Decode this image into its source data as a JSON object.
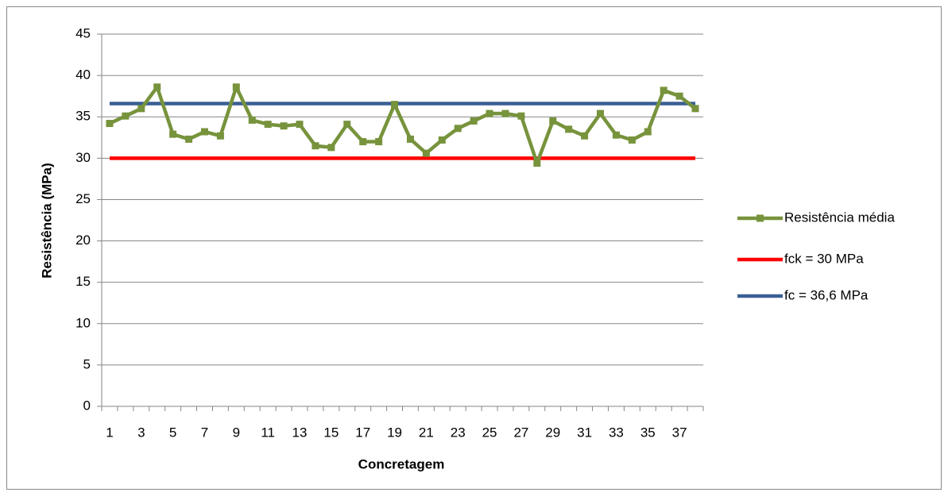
{
  "chart_data": {
    "type": "line",
    "x_label": "Concretagem",
    "y_label": "Resistência (MPa)",
    "categories": [
      "1",
      null,
      "3",
      null,
      "5",
      null,
      "7",
      null,
      "9",
      null,
      "11",
      null,
      "13",
      null,
      "15",
      null,
      "17",
      null,
      "19",
      null,
      "21",
      null,
      "23",
      null,
      "25",
      null,
      "27",
      null,
      "29",
      null,
      "31",
      null,
      "33",
      null,
      "35",
      null,
      "37",
      null
    ],
    "series": [
      {
        "name": "Resistência média",
        "color": "#77933c",
        "marker": "square",
        "values": [
          34.2,
          35.1,
          36.0,
          38.6,
          32.9,
          32.3,
          33.2,
          32.7,
          38.6,
          34.6,
          34.1,
          33.9,
          34.1,
          31.5,
          31.3,
          34.1,
          32.0,
          32.0,
          36.5,
          32.3,
          30.6,
          32.2,
          33.6,
          34.5,
          35.4,
          35.4,
          35.1,
          29.4,
          34.5,
          33.5,
          32.7,
          35.4,
          32.8,
          32.2,
          33.2,
          38.2,
          37.5,
          36.0
        ]
      },
      {
        "name": "fck = 30 MPa",
        "color": "#ff0000",
        "values": [
          30,
          30,
          30,
          30,
          30,
          30,
          30,
          30,
          30,
          30,
          30,
          30,
          30,
          30,
          30,
          30,
          30,
          30,
          30,
          30,
          30,
          30,
          30,
          30,
          30,
          30,
          30,
          30,
          30,
          30,
          30,
          30,
          30,
          30,
          30,
          30,
          30,
          30
        ]
      },
      {
        "name": "fc = 36,6 MPa",
        "color": "#3a5f94",
        "values": [
          36.6,
          36.6,
          36.6,
          36.6,
          36.6,
          36.6,
          36.6,
          36.6,
          36.6,
          36.6,
          36.6,
          36.6,
          36.6,
          36.6,
          36.6,
          36.6,
          36.6,
          36.6,
          36.6,
          36.6,
          36.6,
          36.6,
          36.6,
          36.6,
          36.6,
          36.6,
          36.6,
          36.6,
          36.6,
          36.6,
          36.6,
          36.6,
          36.6,
          36.6,
          36.6,
          36.6,
          36.6,
          36.6
        ]
      }
    ],
    "ylim": [
      0,
      45
    ],
    "yticks": [
      0,
      5,
      10,
      15,
      20,
      25,
      30,
      35,
      40,
      45
    ],
    "grid": true,
    "legend": "right"
  }
}
